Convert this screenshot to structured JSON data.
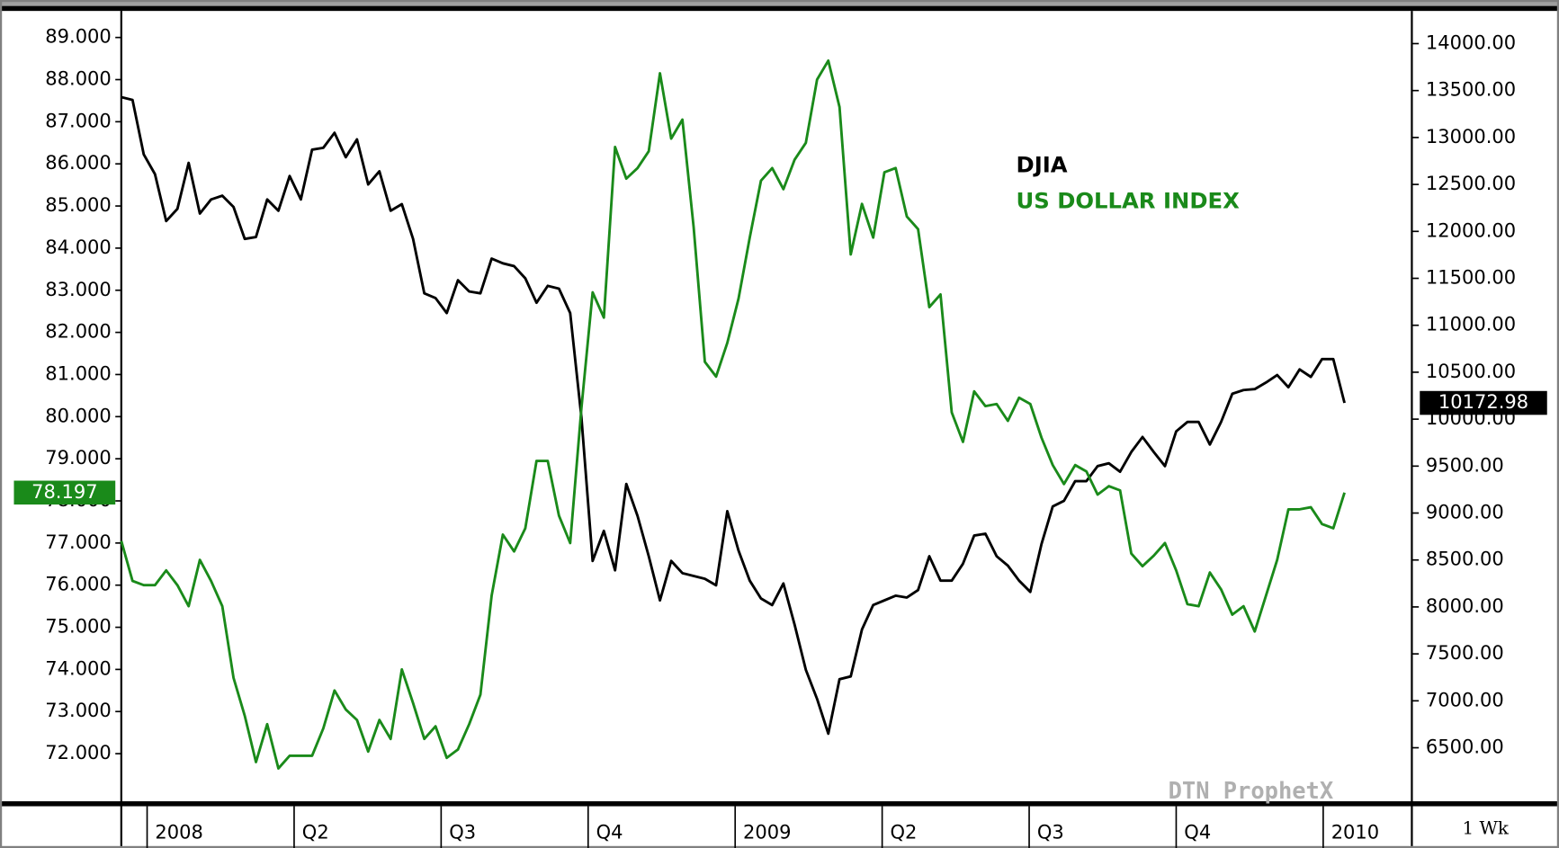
{
  "chart_data": {
    "type": "line",
    "series": [
      {
        "name": "DJIA",
        "color": "#000000",
        "axis": "y2",
        "values": [
          13430,
          13400,
          12820,
          12610,
          12110,
          12240,
          12730,
          12190,
          12340,
          12380,
          12260,
          11920,
          11940,
          12340,
          12220,
          12590,
          12340,
          12870,
          12890,
          13050,
          12790,
          12980,
          12500,
          12640,
          12220,
          12290,
          11920,
          11340,
          11290,
          11130,
          11480,
          11360,
          11340,
          11710,
          11660,
          11630,
          11500,
          11240,
          11420,
          11390,
          11130,
          10020,
          8490,
          8810,
          8390,
          9310,
          8970,
          8540,
          8070,
          8490,
          8360,
          8330,
          8300,
          8230,
          9020,
          8600,
          8280,
          8090,
          8020,
          8250,
          7810,
          7330,
          7020,
          6650,
          7230,
          7260,
          7760,
          8020,
          8070,
          8120,
          8100,
          8180,
          8540,
          8280,
          8280,
          8460,
          8760,
          8780,
          8540,
          8440,
          8280,
          8160,
          8670,
          9070,
          9130,
          9340,
          9340,
          9500,
          9530,
          9440,
          9650,
          9810,
          9650,
          9500,
          9870,
          9970,
          9970,
          9730,
          9970,
          10270,
          10310,
          10320,
          10390,
          10470,
          10340,
          10530,
          10450,
          10640,
          10640,
          10172.98
        ]
      },
      {
        "name": "US DOLLAR INDEX",
        "color": "#1a8a1a",
        "axis": "y",
        "values": [
          77.05,
          76.1,
          76.0,
          76.0,
          76.35,
          76.0,
          75.5,
          76.6,
          76.1,
          75.5,
          73.8,
          72.9,
          71.8,
          72.7,
          71.65,
          71.95,
          71.95,
          71.95,
          72.6,
          73.5,
          73.05,
          72.8,
          72.05,
          72.8,
          72.35,
          74.0,
          73.2,
          72.35,
          72.65,
          71.9,
          72.1,
          72.7,
          73.4,
          75.75,
          77.2,
          76.8,
          77.35,
          78.95,
          78.95,
          77.65,
          77.0,
          80.2,
          82.95,
          82.35,
          86.4,
          85.65,
          85.9,
          86.3,
          88.15,
          86.6,
          87.05,
          84.5,
          81.3,
          80.95,
          81.75,
          82.8,
          84.25,
          85.6,
          85.9,
          85.4,
          86.1,
          86.5,
          88.0,
          88.45,
          87.35,
          83.85,
          85.05,
          84.25,
          85.8,
          85.9,
          84.75,
          84.45,
          82.6,
          82.9,
          80.1,
          79.4,
          80.6,
          80.25,
          80.3,
          79.9,
          80.45,
          80.3,
          79.5,
          78.85,
          78.4,
          78.85,
          78.7,
          78.15,
          78.35,
          78.25,
          76.75,
          76.45,
          76.7,
          77.0,
          76.35,
          75.55,
          75.5,
          76.3,
          75.9,
          75.3,
          75.5,
          74.9,
          75.75,
          76.6,
          77.8,
          77.8,
          77.85,
          77.45,
          77.35,
          78.197
        ]
      }
    ],
    "xlim": [
      0,
      115
    ],
    "xticks": [
      {
        "value": 2.3,
        "label": "2008"
      },
      {
        "value": 15.4,
        "label": "Q2"
      },
      {
        "value": 28.5,
        "label": "Q3"
      },
      {
        "value": 41.6,
        "label": "Q4"
      },
      {
        "value": 54.7,
        "label": "2009"
      },
      {
        "value": 67.8,
        "label": "Q2"
      },
      {
        "value": 80.9,
        "label": "Q3"
      },
      {
        "value": 94.0,
        "label": "Q4"
      },
      {
        "value": 107.1,
        "label": "2010"
      }
    ],
    "ylim": [
      70.87,
      89.63
    ],
    "yticks": [
      {
        "value": 72,
        "label": "72.000"
      },
      {
        "value": 73,
        "label": "73.000"
      },
      {
        "value": 74,
        "label": "74.000"
      },
      {
        "value": 75,
        "label": "75.000"
      },
      {
        "value": 76,
        "label": "76.000"
      },
      {
        "value": 77,
        "label": "77.000"
      },
      {
        "value": 78,
        "label": "78.000"
      },
      {
        "value": 79,
        "label": "79.000"
      },
      {
        "value": 80,
        "label": "80.000"
      },
      {
        "value": 81,
        "label": "81.000"
      },
      {
        "value": 82,
        "label": "82.000"
      },
      {
        "value": 83,
        "label": "83.000"
      },
      {
        "value": 84,
        "label": "84.000"
      },
      {
        "value": 85,
        "label": "85.000"
      },
      {
        "value": 86,
        "label": "86.000"
      },
      {
        "value": 87,
        "label": "87.000"
      },
      {
        "value": 88,
        "label": "88.000"
      },
      {
        "value": 89,
        "label": "89.000"
      }
    ],
    "y2lim": [
      5930,
      14348
    ],
    "y2ticks": [
      {
        "value": 6500,
        "label": "6500.00"
      },
      {
        "value": 7000,
        "label": "7000.00"
      },
      {
        "value": 7500,
        "label": "7500.00"
      },
      {
        "value": 8000,
        "label": "8000.00"
      },
      {
        "value": 8500,
        "label": "8500.00"
      },
      {
        "value": 9000,
        "label": "9000.00"
      },
      {
        "value": 9500,
        "label": "9500.00"
      },
      {
        "value": 10000,
        "label": "10000.00"
      },
      {
        "value": 10500,
        "label": "10500.00"
      },
      {
        "value": 11000,
        "label": "11000.00"
      },
      {
        "value": 11500,
        "label": "11500.00"
      },
      {
        "value": 12000,
        "label": "12000.00"
      },
      {
        "value": 12500,
        "label": "12500.00"
      },
      {
        "value": 13000,
        "label": "13000.00"
      },
      {
        "value": 13500,
        "label": "13500.00"
      },
      {
        "value": 14000,
        "label": "14000.00"
      }
    ],
    "legend": "upper right",
    "watermark": "DTN ProphetX",
    "interval": "1 Wk"
  }
}
